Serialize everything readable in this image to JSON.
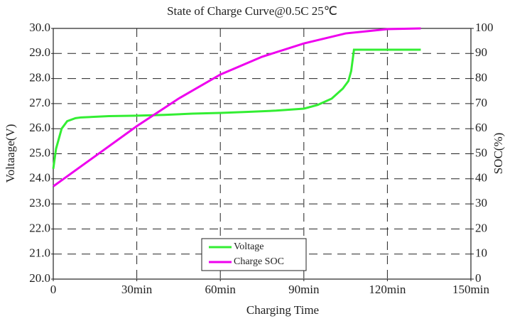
{
  "chart_data": {
    "type": "line",
    "title": "State of Charge Curve@0.5C 25℃",
    "xlabel": "Charging Time",
    "ylabel": "Voltaage(V)",
    "y2label": "SOC(%)",
    "xlim": [
      0,
      150
    ],
    "xticks": [
      0,
      {
        "value": 30,
        "label": "30min"
      },
      {
        "value": 60,
        "label": "60min"
      },
      {
        "value": 90,
        "label": "90min"
      },
      {
        "value": 120,
        "label": "120min"
      },
      {
        "value": 150,
        "label": "150min"
      }
    ],
    "ylim": [
      20,
      30
    ],
    "yticks": [
      {
        "value": 20,
        "label": "20.0"
      },
      {
        "value": 21,
        "label": "21.0"
      },
      {
        "value": 22,
        "label": "22.0"
      },
      {
        "value": 23,
        "label": "23.0"
      },
      {
        "value": 24,
        "label": "24.0"
      },
      {
        "value": 25,
        "label": "25.0"
      },
      {
        "value": 26,
        "label": "26.0"
      },
      {
        "value": 27,
        "label": "27.0"
      },
      {
        "value": 28,
        "label": "28.0"
      },
      {
        "value": 29,
        "label": "29.0"
      },
      {
        "value": 30,
        "label": "30.0"
      }
    ],
    "y2lim": [
      0,
      100
    ],
    "y2ticks": [
      0,
      10,
      20,
      30,
      40,
      50,
      60,
      70,
      80,
      90,
      100
    ],
    "grid": true,
    "legend": "lower center",
    "series": [
      {
        "name": "Voltage",
        "color": "#33ee33",
        "x": [
          0,
          1,
          3,
          5,
          8,
          10,
          20,
          30,
          40,
          50,
          60,
          70,
          80,
          90,
          95,
          100,
          104,
          106,
          107,
          108,
          120,
          132
        ],
        "values": [
          24.4,
          25.2,
          26.0,
          26.3,
          26.42,
          26.45,
          26.5,
          26.52,
          26.55,
          26.6,
          26.63,
          26.67,
          26.72,
          26.8,
          26.95,
          27.2,
          27.6,
          27.9,
          28.3,
          29.15,
          29.15,
          29.15
        ]
      },
      {
        "name": "Charge SOC",
        "color": "#ee00ee",
        "axis": "y2",
        "x": [
          0,
          15,
          30,
          45,
          60,
          75,
          90,
          105,
          120,
          132
        ],
        "values": [
          37,
          49,
          61,
          72,
          81.6,
          88.7,
          94,
          98,
          99.7,
          100
        ]
      }
    ]
  }
}
